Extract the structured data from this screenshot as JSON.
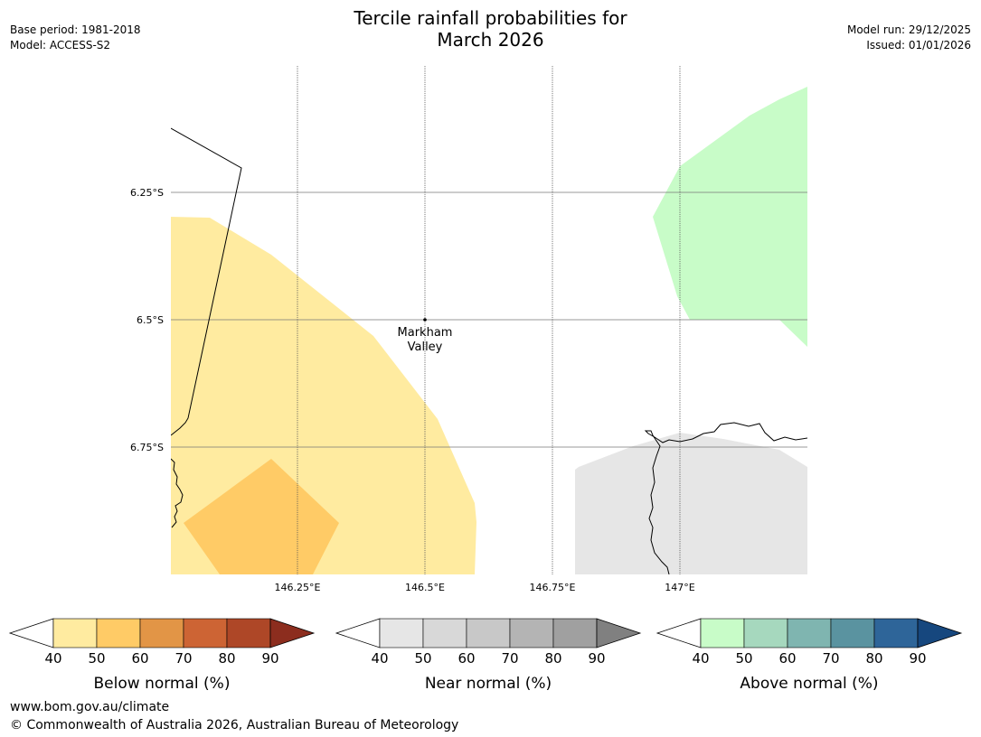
{
  "header": {
    "title_line1": "Tercile rainfall probabilities for",
    "title_line2": "March 2026",
    "base_period": "Base period: 1981-2018",
    "model": "Model: ACCESS-S2",
    "model_run": "Model run: 29/12/2025",
    "issued": "Issued: 01/01/2026"
  },
  "map": {
    "lon_labels": [
      "146.25°E",
      "146.5°E",
      "146.75°E",
      "147°E"
    ],
    "lat_labels": [
      "6.25°S",
      "6.5°S",
      "6.75°S"
    ],
    "place": {
      "name_line1": "Markham",
      "name_line2": "Valley"
    },
    "regions": [
      {
        "category": "below_normal",
        "band": "40-50",
        "color": "#ffeba0"
      },
      {
        "category": "below_normal",
        "band": "50-60",
        "color": "#ffcb66"
      },
      {
        "category": "above_normal",
        "band": "40-50",
        "color": "#c8fcc8"
      },
      {
        "category": "near_normal",
        "band": "40-50",
        "color": "#e6e6e6"
      }
    ]
  },
  "legends": [
    {
      "label": "Below normal (%)",
      "ticks": [
        "40",
        "50",
        "60",
        "70",
        "80",
        "90"
      ],
      "colors": [
        "#ffeba0",
        "#ffcb66",
        "#e29546",
        "#cd6434",
        "#ae4727"
      ],
      "over_color": "#8c2d1e"
    },
    {
      "label": "Near normal (%)",
      "ticks": [
        "40",
        "50",
        "60",
        "70",
        "80",
        "90"
      ],
      "colors": [
        "#e6e6e6",
        "#d8d8d8",
        "#c8c8c8",
        "#b4b4b4",
        "#a0a0a0"
      ],
      "over_color": "#808080"
    },
    {
      "label": "Above normal (%)",
      "ticks": [
        "40",
        "50",
        "60",
        "70",
        "80",
        "90"
      ],
      "colors": [
        "#c8fcc8",
        "#a6d8be",
        "#7fb5b0",
        "#5a93a0",
        "#2e6599"
      ],
      "over_color": "#16477e"
    }
  ],
  "footer": {
    "url": "www.bom.gov.au/climate",
    "copyright": "© Commonwealth of Australia 2026, Australian Bureau of Meteorology"
  }
}
